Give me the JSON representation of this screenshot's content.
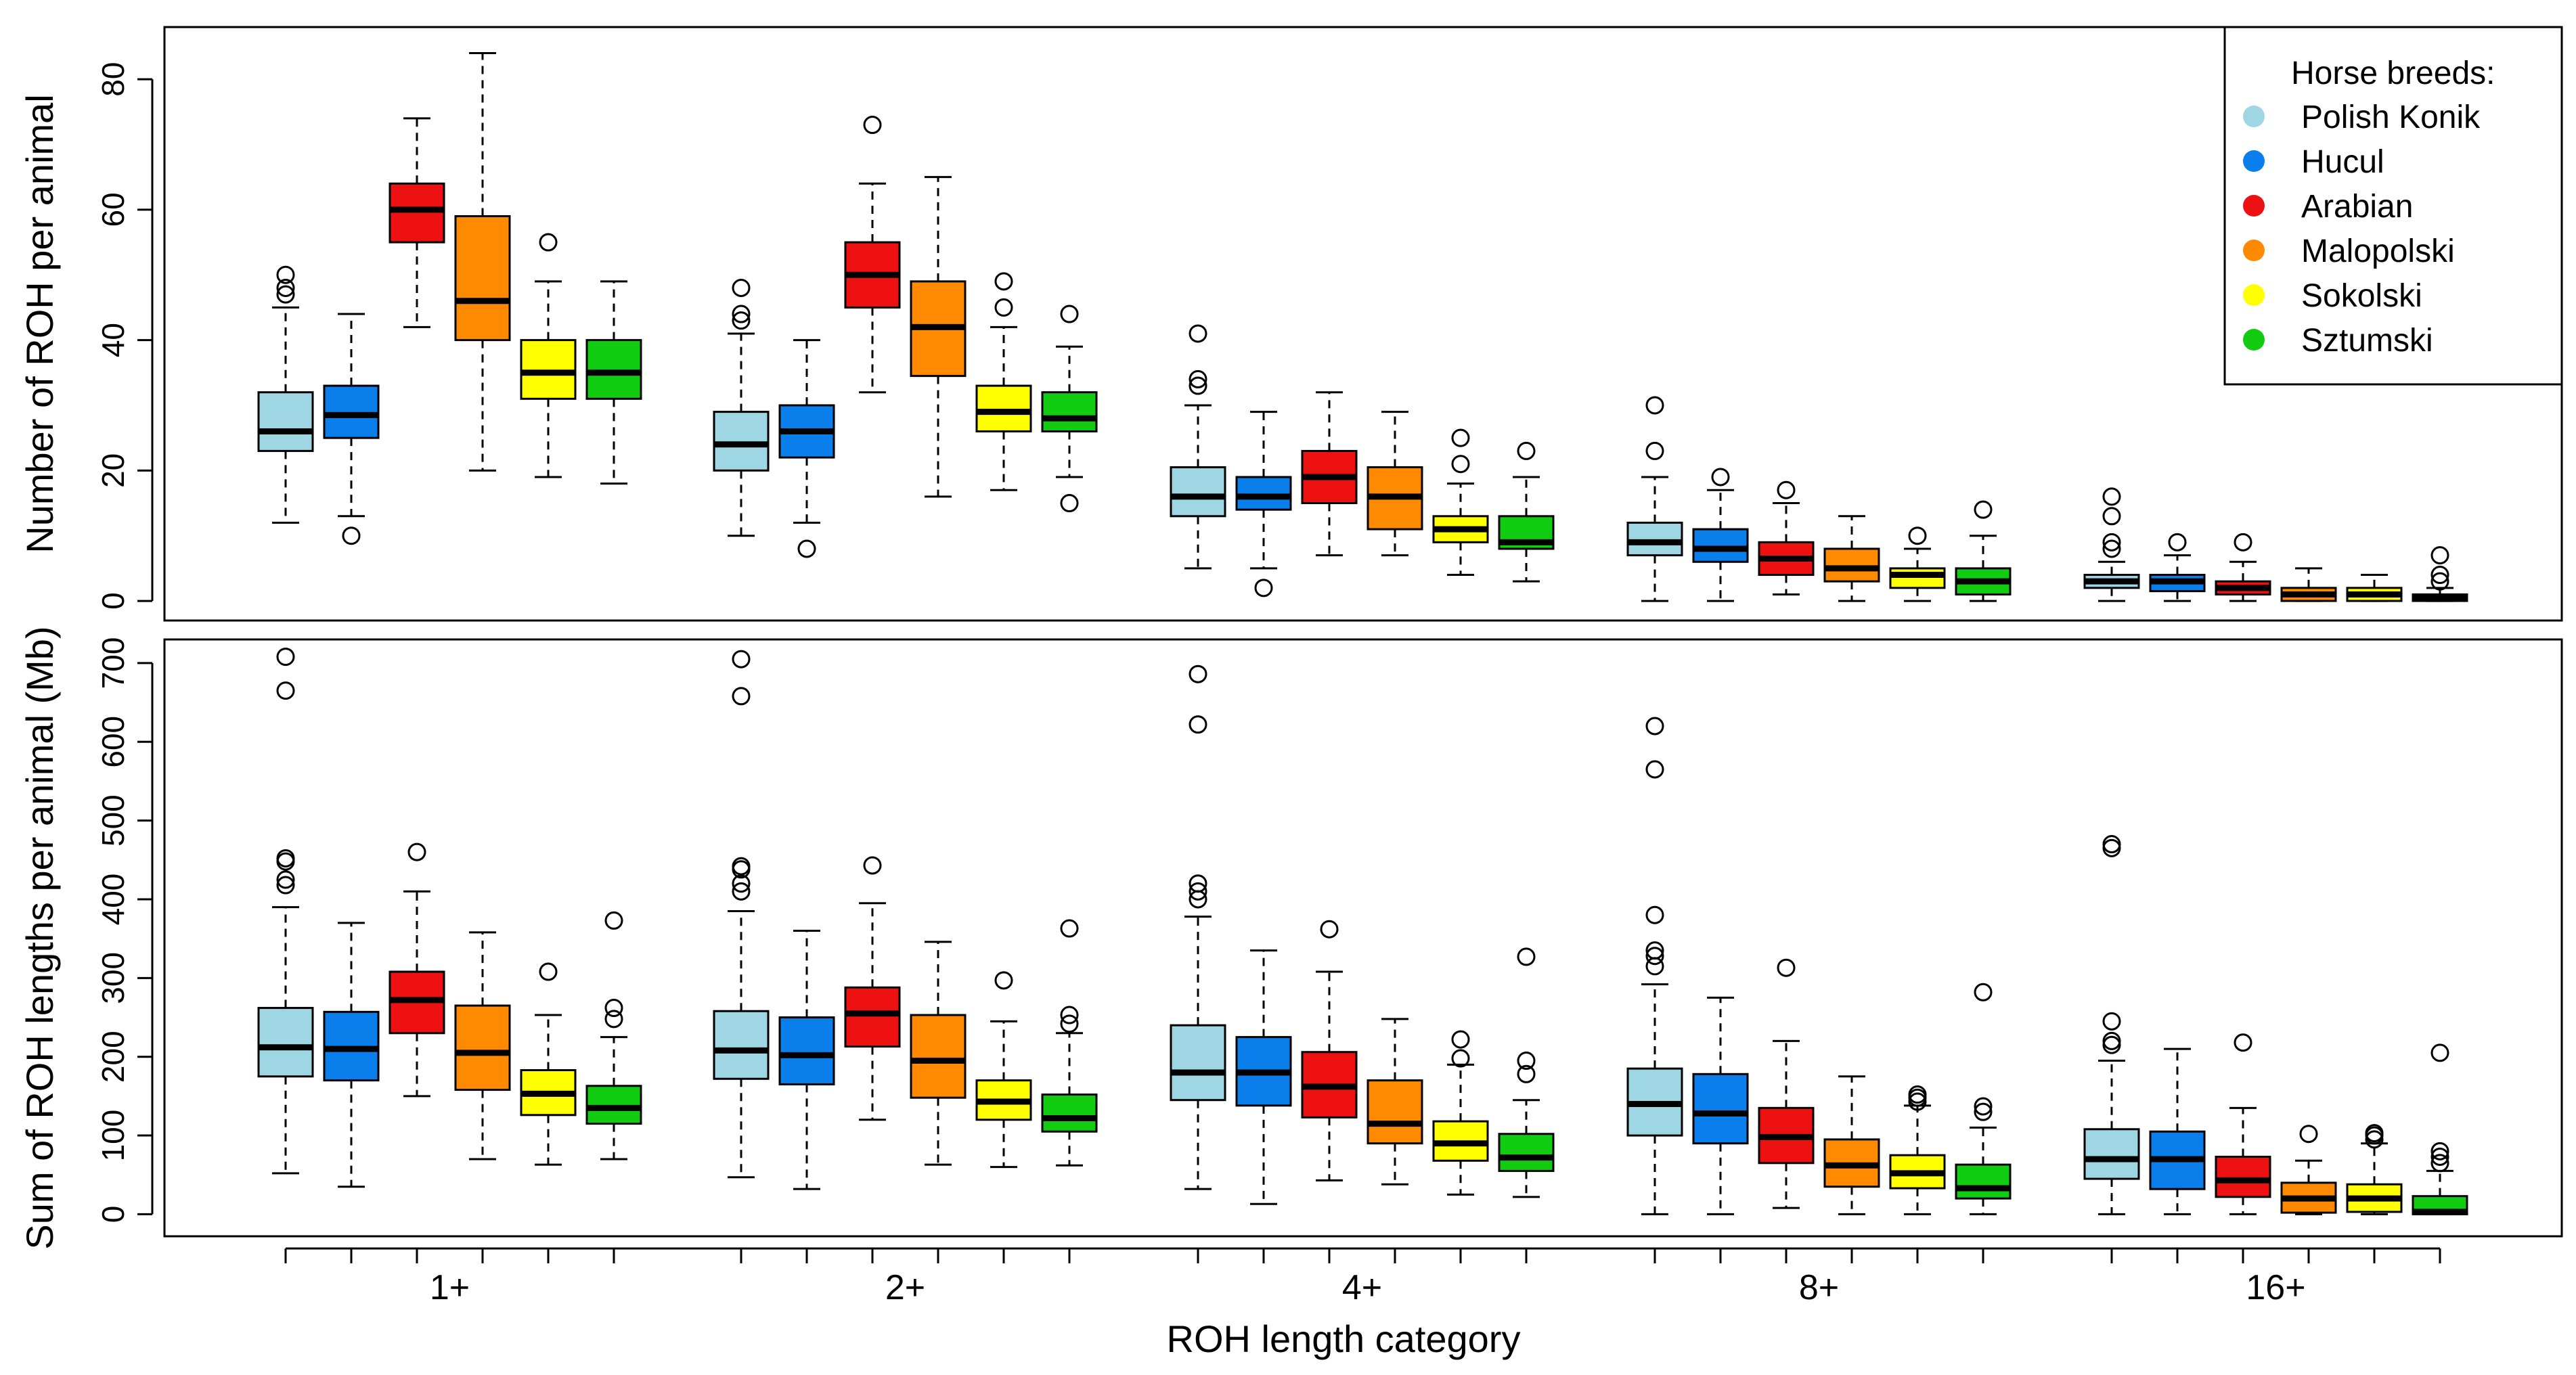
{
  "figure": {
    "xlabel": "ROH length category",
    "categories": [
      "1+",
      "2+",
      "4+",
      "8+",
      "16+"
    ],
    "legend": {
      "title": "Horse breeds:",
      "position": "top-right",
      "entries": [
        {
          "name": "Polish Konik",
          "color": "#9ED6E3"
        },
        {
          "name": "Hucul",
          "color": "#0A7FEB"
        },
        {
          "name": "Arabian",
          "color": "#EE1111"
        },
        {
          "name": "Malopolski",
          "color": "#FF8A00"
        },
        {
          "name": "Sokolski",
          "color": "#FFFF00"
        },
        {
          "name": "Sztumski",
          "color": "#11CC11"
        }
      ]
    }
  },
  "chart_data": [
    {
      "type": "boxplot",
      "panel": "top",
      "ylabel": "Number of ROH per animal",
      "ylim": [
        -3,
        88
      ],
      "yticks": [
        0,
        20,
        40,
        60,
        80
      ],
      "grid": false,
      "categories": [
        "1+",
        "2+",
        "4+",
        "8+",
        "16+"
      ],
      "series": [
        {
          "name": "Polish Konik",
          "boxes": [
            {
              "min": 12,
              "q1": 23,
              "median": 26,
              "q3": 32,
              "max": 45,
              "outliers": [
                47,
                48,
                50
              ]
            },
            {
              "min": 10,
              "q1": 20,
              "median": 24,
              "q3": 29,
              "max": 41,
              "outliers": [
                43,
                44,
                48
              ]
            },
            {
              "min": 5,
              "q1": 13,
              "median": 16,
              "q3": 20.5,
              "max": 30,
              "outliers": [
                33,
                34,
                41
              ]
            },
            {
              "min": 0,
              "q1": 7,
              "median": 9,
              "q3": 12,
              "max": 19,
              "outliers": [
                23,
                30
              ]
            },
            {
              "min": 0,
              "q1": 2,
              "median": 3,
              "q3": 4,
              "max": 6,
              "outliers": [
                8,
                9,
                13,
                16
              ]
            }
          ]
        },
        {
          "name": "Hucul",
          "boxes": [
            {
              "min": 13,
              "q1": 25,
              "median": 28.5,
              "q3": 33,
              "max": 44,
              "outliers": [
                10
              ]
            },
            {
              "min": 12,
              "q1": 22,
              "median": 26,
              "q3": 30,
              "max": 40,
              "outliers": [
                8
              ]
            },
            {
              "min": 5,
              "q1": 14,
              "median": 16,
              "q3": 19,
              "max": 29,
              "outliers": [
                2
              ]
            },
            {
              "min": 0,
              "q1": 6,
              "median": 8,
              "q3": 11,
              "max": 17,
              "outliers": [
                19
              ]
            },
            {
              "min": 0,
              "q1": 1.5,
              "median": 3,
              "q3": 4,
              "max": 7,
              "outliers": [
                9
              ]
            }
          ]
        },
        {
          "name": "Arabian",
          "boxes": [
            {
              "min": 42,
              "q1": 55,
              "median": 60,
              "q3": 64,
              "max": 74,
              "outliers": []
            },
            {
              "min": 32,
              "q1": 45,
              "median": 50,
              "q3": 55,
              "max": 64,
              "outliers": [
                73
              ]
            },
            {
              "min": 7,
              "q1": 15,
              "median": 19,
              "q3": 23,
              "max": 32,
              "outliers": []
            },
            {
              "min": 1,
              "q1": 4,
              "median": 6.5,
              "q3": 9,
              "max": 15,
              "outliers": [
                17
              ]
            },
            {
              "min": 0,
              "q1": 1,
              "median": 2,
              "q3": 3,
              "max": 6,
              "outliers": [
                9
              ]
            }
          ]
        },
        {
          "name": "Malopolski",
          "boxes": [
            {
              "min": 20,
              "q1": 40,
              "median": 46,
              "q3": 59,
              "max": 84,
              "outliers": []
            },
            {
              "min": 16,
              "q1": 34.5,
              "median": 42,
              "q3": 49,
              "max": 65,
              "outliers": []
            },
            {
              "min": 7,
              "q1": 11,
              "median": 16,
              "q3": 20.5,
              "max": 29,
              "outliers": []
            },
            {
              "min": 0,
              "q1": 3,
              "median": 5,
              "q3": 8,
              "max": 13,
              "outliers": []
            },
            {
              "min": 0,
              "q1": 0,
              "median": 1,
              "q3": 2,
              "max": 5,
              "outliers": []
            }
          ]
        },
        {
          "name": "Sokolski",
          "boxes": [
            {
              "min": 19,
              "q1": 31,
              "median": 35,
              "q3": 40,
              "max": 49,
              "outliers": [
                55
              ]
            },
            {
              "min": 17,
              "q1": 26,
              "median": 29,
              "q3": 33,
              "max": 42,
              "outliers": [
                45,
                49
              ]
            },
            {
              "min": 4,
              "q1": 9,
              "median": 11,
              "q3": 13,
              "max": 18,
              "outliers": [
                21,
                25
              ]
            },
            {
              "min": 0,
              "q1": 2,
              "median": 4,
              "q3": 5,
              "max": 8,
              "outliers": [
                10
              ]
            },
            {
              "min": 0,
              "q1": 0,
              "median": 1,
              "q3": 2,
              "max": 4,
              "outliers": []
            }
          ]
        },
        {
          "name": "Sztumski",
          "boxes": [
            {
              "min": 18,
              "q1": 31,
              "median": 35,
              "q3": 40,
              "max": 49,
              "outliers": []
            },
            {
              "min": 19,
              "q1": 26,
              "median": 28,
              "q3": 32,
              "max": 39,
              "outliers": [
                15,
                44
              ]
            },
            {
              "min": 3,
              "q1": 8,
              "median": 9,
              "q3": 13,
              "max": 19,
              "outliers": [
                23
              ]
            },
            {
              "min": 0,
              "q1": 1,
              "median": 3,
              "q3": 5,
              "max": 10,
              "outliers": [
                14
              ]
            },
            {
              "min": 0,
              "q1": 0,
              "median": 0.5,
              "q3": 1,
              "max": 2,
              "outliers": [
                3,
                4,
                7
              ]
            }
          ]
        }
      ]
    },
    {
      "type": "boxplot",
      "panel": "bottom",
      "ylabel": "Sum of ROH lengths per animal (Mb)",
      "ylim": [
        -28,
        730
      ],
      "yticks": [
        0,
        100,
        200,
        300,
        400,
        500,
        600,
        700
      ],
      "grid": false,
      "categories": [
        "1+",
        "2+",
        "4+",
        "8+",
        "16+"
      ],
      "series": [
        {
          "name": "Polish Konik",
          "boxes": [
            {
              "min": 52,
              "q1": 175,
              "median": 212,
              "q3": 262,
              "max": 390,
              "outliers": [
                418,
                425,
                448,
                452,
                665,
                708
              ]
            },
            {
              "min": 47,
              "q1": 172,
              "median": 208,
              "q3": 258,
              "max": 385,
              "outliers": [
                410,
                420,
                438,
                442,
                658,
                705
              ]
            },
            {
              "min": 32,
              "q1": 145,
              "median": 180,
              "q3": 240,
              "max": 378,
              "outliers": [
                400,
                410,
                420,
                622,
                686
              ]
            },
            {
              "min": 0,
              "q1": 100,
              "median": 140,
              "q3": 185,
              "max": 292,
              "outliers": [
                315,
                328,
                335,
                380,
                565,
                620
              ]
            },
            {
              "min": 0,
              "q1": 45,
              "median": 70,
              "q3": 108,
              "max": 195,
              "outliers": [
                215,
                220,
                245,
                465,
                470
              ]
            }
          ]
        },
        {
          "name": "Hucul",
          "boxes": [
            {
              "min": 35,
              "q1": 170,
              "median": 210,
              "q3": 257,
              "max": 370,
              "outliers": []
            },
            {
              "min": 32,
              "q1": 165,
              "median": 202,
              "q3": 250,
              "max": 360,
              "outliers": []
            },
            {
              "min": 13,
              "q1": 138,
              "median": 180,
              "q3": 225,
              "max": 335,
              "outliers": []
            },
            {
              "min": 0,
              "q1": 90,
              "median": 128,
              "q3": 178,
              "max": 275,
              "outliers": []
            },
            {
              "min": 0,
              "q1": 32,
              "median": 70,
              "q3": 105,
              "max": 210,
              "outliers": []
            }
          ]
        },
        {
          "name": "Arabian",
          "boxes": [
            {
              "min": 150,
              "q1": 230,
              "median": 272,
              "q3": 308,
              "max": 410,
              "outliers": [
                460
              ]
            },
            {
              "min": 120,
              "q1": 213,
              "median": 255,
              "q3": 288,
              "max": 395,
              "outliers": [
                443
              ]
            },
            {
              "min": 43,
              "q1": 123,
              "median": 162,
              "q3": 206,
              "max": 308,
              "outliers": [
                362
              ]
            },
            {
              "min": 8,
              "q1": 65,
              "median": 98,
              "q3": 135,
              "max": 220,
              "outliers": [
                313
              ]
            },
            {
              "min": 0,
              "q1": 22,
              "median": 43,
              "q3": 73,
              "max": 135,
              "outliers": [
                218
              ]
            }
          ]
        },
        {
          "name": "Malopolski",
          "boxes": [
            {
              "min": 70,
              "q1": 158,
              "median": 205,
              "q3": 265,
              "max": 358,
              "outliers": []
            },
            {
              "min": 63,
              "q1": 148,
              "median": 195,
              "q3": 253,
              "max": 346,
              "outliers": []
            },
            {
              "min": 38,
              "q1": 90,
              "median": 115,
              "q3": 170,
              "max": 248,
              "outliers": []
            },
            {
              "min": 0,
              "q1": 35,
              "median": 62,
              "q3": 95,
              "max": 175,
              "outliers": []
            },
            {
              "min": 0,
              "q1": 2,
              "median": 20,
              "q3": 40,
              "max": 68,
              "outliers": [
                102
              ]
            }
          ]
        },
        {
          "name": "Sokolski",
          "boxes": [
            {
              "min": 63,
              "q1": 126,
              "median": 153,
              "q3": 183,
              "max": 253,
              "outliers": [
                308
              ]
            },
            {
              "min": 60,
              "q1": 120,
              "median": 143,
              "q3": 170,
              "max": 245,
              "outliers": [
                297
              ]
            },
            {
              "min": 25,
              "q1": 68,
              "median": 90,
              "q3": 118,
              "max": 190,
              "outliers": [
                198,
                222
              ]
            },
            {
              "min": 0,
              "q1": 33,
              "median": 52,
              "q3": 75,
              "max": 138,
              "outliers": [
                143,
                148,
                152
              ]
            },
            {
              "min": 0,
              "q1": 3,
              "median": 20,
              "q3": 38,
              "max": 90,
              "outliers": [
                95,
                100,
                103
              ]
            }
          ]
        },
        {
          "name": "Sztumski",
          "boxes": [
            {
              "min": 70,
              "q1": 115,
              "median": 135,
              "q3": 163,
              "max": 225,
              "outliers": [
                248,
                262,
                373
              ]
            },
            {
              "min": 62,
              "q1": 105,
              "median": 122,
              "q3": 152,
              "max": 230,
              "outliers": [
                242,
                253,
                363
              ]
            },
            {
              "min": 22,
              "q1": 55,
              "median": 72,
              "q3": 102,
              "max": 145,
              "outliers": [
                178,
                195,
                327
              ]
            },
            {
              "min": 0,
              "q1": 20,
              "median": 33,
              "q3": 63,
              "max": 110,
              "outliers": [
                130,
                137,
                282
              ]
            },
            {
              "min": 0,
              "q1": 0,
              "median": 3,
              "q3": 23,
              "max": 55,
              "outliers": [
                65,
                73,
                80,
                205
              ]
            }
          ]
        }
      ]
    }
  ]
}
